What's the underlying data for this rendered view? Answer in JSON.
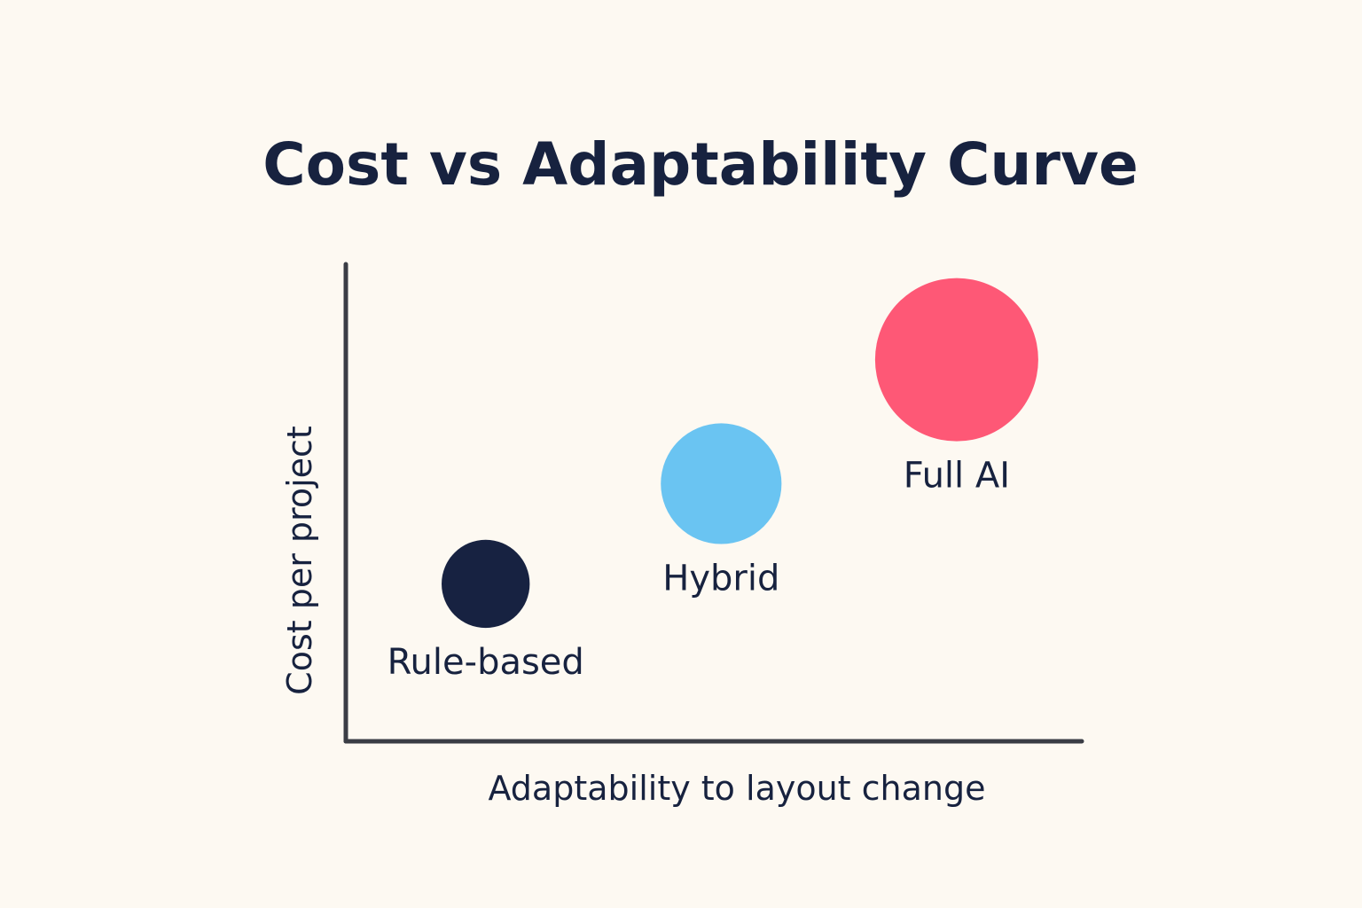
{
  "chart_data": {
    "type": "scatter",
    "title": "Cost vs Adaptability Curve",
    "xlabel": "Adaptability to layout change",
    "ylabel": "Cost per project",
    "xlim": [
      0,
      10
    ],
    "ylim": [
      0,
      10
    ],
    "grid": false,
    "ticks_shown": false,
    "points": [
      {
        "label": "Rule-based",
        "x": 1.9,
        "y": 3.3,
        "size": 0.54,
        "color": "#172241",
        "label_position": "below"
      },
      {
        "label": "Hybrid",
        "x": 5.1,
        "y": 5.4,
        "size": 0.74,
        "color": "#6ac4f2",
        "label_position": "below"
      },
      {
        "label": "Full AI",
        "x": 8.3,
        "y": 8.0,
        "size": 1.0,
        "color": "#fe5876",
        "label_position": "below"
      }
    ],
    "colors": {
      "background": "#fdf9f2",
      "text": "#17223f",
      "axis": "#3a3d45"
    }
  }
}
